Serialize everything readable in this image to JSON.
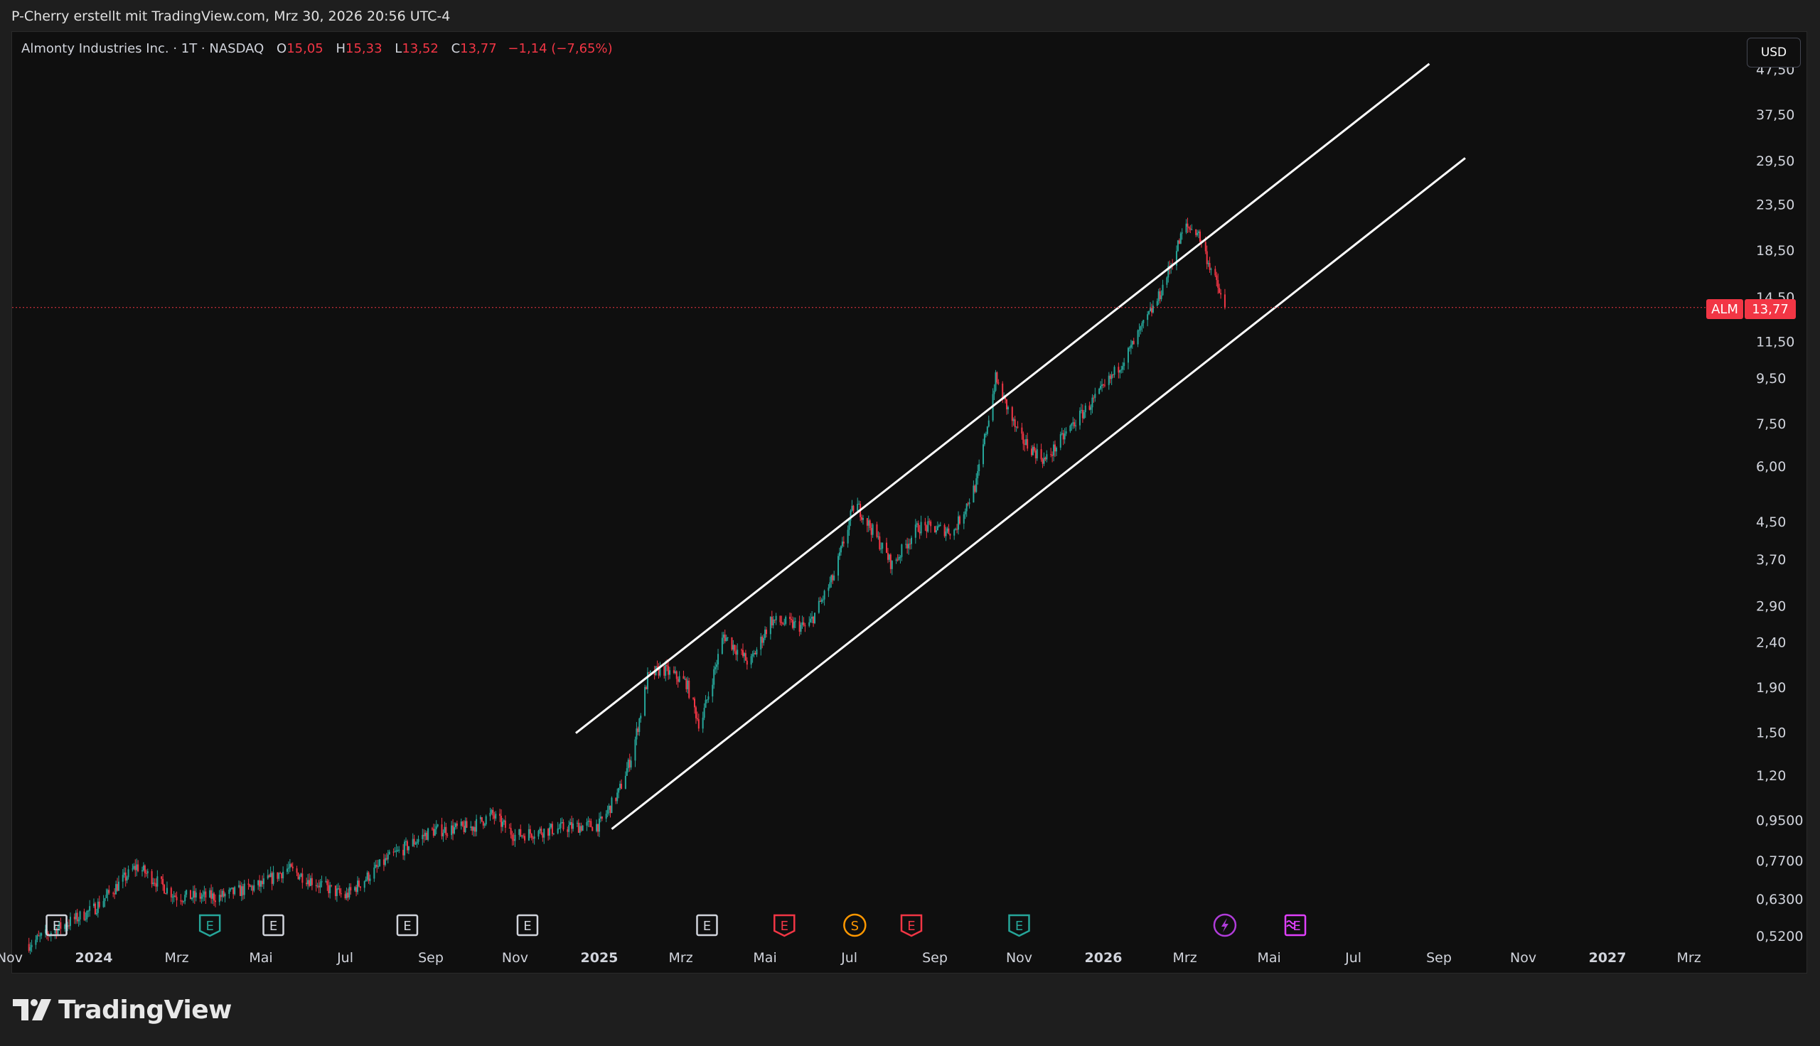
{
  "header": {
    "snapshot_text": "P-Cherry erstellt mit TradingView.com, Mrz 30, 2026 20:56 UTC-4"
  },
  "legend": {
    "symbol_name": "Almonty Industries Inc. · 1T · NASDAQ",
    "open_label": "O",
    "open": "15,05",
    "high_label": "H",
    "high": "15,33",
    "low_label": "L",
    "low": "13,52",
    "close_label": "C",
    "close": "13,77",
    "change": "−1,14 (−7,65%)"
  },
  "toolbar": {
    "currency": "USD"
  },
  "price_label": {
    "symbol": "ALM",
    "value": "13,77"
  },
  "brand": {
    "name": "TradingView"
  },
  "colors": {
    "up": "#26a69a",
    "down": "#f23645",
    "background": "#0f0f0f",
    "frame": "#1e1e1e",
    "channel": "#ffffff",
    "grid_text": "#d1d4dc"
  },
  "chart_data": {
    "type": "candlestick",
    "scale": "log",
    "grid": false,
    "y_ticks": [
      "47,50",
      "37,50",
      "29,50",
      "23,50",
      "18,50",
      "14,50",
      "11,50",
      "9,50",
      "7,50",
      "6,00",
      "4,50",
      "3,70",
      "2,90",
      "2,40",
      "1,90",
      "1,50",
      "1,20",
      "0,9500",
      "0,7700",
      "0,6300",
      "0,5200"
    ],
    "x_ticks": [
      {
        "label": "Nov",
        "date": "2023-11-01"
      },
      {
        "label": "2024",
        "date": "2024-01-01",
        "bold": true
      },
      {
        "label": "Mrz",
        "date": "2024-03-01"
      },
      {
        "label": "Mai",
        "date": "2024-05-01"
      },
      {
        "label": "Jul",
        "date": "2024-07-01"
      },
      {
        "label": "Sep",
        "date": "2024-09-01"
      },
      {
        "label": "Nov",
        "date": "2024-11-01"
      },
      {
        "label": "2025",
        "date": "2025-01-01",
        "bold": true
      },
      {
        "label": "Mrz",
        "date": "2025-03-01"
      },
      {
        "label": "Mai",
        "date": "2025-05-01"
      },
      {
        "label": "Jul",
        "date": "2025-07-01"
      },
      {
        "label": "Sep",
        "date": "2025-09-01"
      },
      {
        "label": "Nov",
        "date": "2025-11-01"
      },
      {
        "label": "2026",
        "date": "2026-01-01",
        "bold": true
      },
      {
        "label": "Mrz",
        "date": "2026-03-01"
      },
      {
        "label": "Mai",
        "date": "2026-05-01"
      },
      {
        "label": "Jul",
        "date": "2026-07-01"
      },
      {
        "label": "Sep",
        "date": "2026-09-01"
      },
      {
        "label": "Nov",
        "date": "2026-11-01"
      },
      {
        "label": "2027",
        "date": "2027-01-01",
        "bold": true
      },
      {
        "label": "Mrz",
        "date": "2027-03-01"
      }
    ],
    "last_close": 13.77,
    "price_path": [
      {
        "date": "2023-11-15",
        "price": 0.5
      },
      {
        "date": "2024-01-01",
        "price": 0.6
      },
      {
        "date": "2024-02-01",
        "price": 0.75
      },
      {
        "date": "2024-03-01",
        "price": 0.64
      },
      {
        "date": "2024-04-01",
        "price": 0.64
      },
      {
        "date": "2024-05-01",
        "price": 0.68
      },
      {
        "date": "2024-05-20",
        "price": 0.74
      },
      {
        "date": "2024-07-01",
        "price": 0.64
      },
      {
        "date": "2024-08-01",
        "price": 0.78
      },
      {
        "date": "2024-09-01",
        "price": 0.9
      },
      {
        "date": "2024-10-01",
        "price": 0.92
      },
      {
        "date": "2024-10-15",
        "price": 0.98
      },
      {
        "date": "2024-11-01",
        "price": 0.88
      },
      {
        "date": "2024-11-20",
        "price": 0.9
      },
      {
        "date": "2024-12-10",
        "price": 0.92
      },
      {
        "date": "2025-01-01",
        "price": 0.93
      },
      {
        "date": "2025-01-15",
        "price": 1.1
      },
      {
        "date": "2025-01-25",
        "price": 1.35
      },
      {
        "date": "2025-02-05",
        "price": 2.0
      },
      {
        "date": "2025-02-15",
        "price": 2.1
      },
      {
        "date": "2025-03-05",
        "price": 1.95
      },
      {
        "date": "2025-03-15",
        "price": 1.55
      },
      {
        "date": "2025-04-01",
        "price": 2.5
      },
      {
        "date": "2025-04-20",
        "price": 2.15
      },
      {
        "date": "2025-05-05",
        "price": 2.7
      },
      {
        "date": "2025-06-01",
        "price": 2.6
      },
      {
        "date": "2025-06-20",
        "price": 3.4
      },
      {
        "date": "2025-07-05",
        "price": 5.0
      },
      {
        "date": "2025-07-20",
        "price": 4.2
      },
      {
        "date": "2025-08-01",
        "price": 3.6
      },
      {
        "date": "2025-08-20",
        "price": 4.4
      },
      {
        "date": "2025-09-15",
        "price": 4.3
      },
      {
        "date": "2025-10-01",
        "price": 5.5
      },
      {
        "date": "2025-10-15",
        "price": 9.5
      },
      {
        "date": "2025-11-01",
        "price": 7.0
      },
      {
        "date": "2025-11-20",
        "price": 6.2
      },
      {
        "date": "2025-12-10",
        "price": 7.5
      },
      {
        "date": "2026-01-01",
        "price": 9.0
      },
      {
        "date": "2026-01-20",
        "price": 11.0
      },
      {
        "date": "2026-02-10",
        "price": 14.5
      },
      {
        "date": "2026-03-01",
        "price": 21.0
      },
      {
        "date": "2026-03-10",
        "price": 20.5
      },
      {
        "date": "2026-03-30",
        "price": 13.77
      }
    ],
    "trendlines": [
      {
        "name": "upper-channel",
        "from": {
          "date": "2024-12-15",
          "price": 1.5
        },
        "to": {
          "date": "2026-08-25",
          "price": 49.0
        }
      },
      {
        "name": "lower-channel",
        "from": {
          "date": "2025-01-10",
          "price": 0.91
        },
        "to": {
          "date": "2026-09-20",
          "price": 30.0
        }
      }
    ],
    "events": [
      {
        "date": "2023-12-05",
        "kind": "E",
        "color": "#d1d4dc",
        "style": "square"
      },
      {
        "date": "2024-03-25",
        "kind": "E",
        "color": "#26a69a",
        "style": "shield"
      },
      {
        "date": "2024-05-10",
        "kind": "E",
        "color": "#d1d4dc",
        "style": "square"
      },
      {
        "date": "2024-08-15",
        "kind": "E",
        "color": "#d1d4dc",
        "style": "square"
      },
      {
        "date": "2024-11-10",
        "kind": "E",
        "color": "#d1d4dc",
        "style": "square"
      },
      {
        "date": "2025-03-20",
        "kind": "E",
        "color": "#d1d4dc",
        "style": "square"
      },
      {
        "date": "2025-05-15",
        "kind": "E",
        "color": "#f23645",
        "style": "shield"
      },
      {
        "date": "2025-07-05",
        "kind": "S",
        "color": "#ff9800",
        "style": "circle"
      },
      {
        "date": "2025-08-15",
        "kind": "E",
        "color": "#f23645",
        "style": "shield"
      },
      {
        "date": "2025-11-01",
        "kind": "E",
        "color": "#26a69a",
        "style": "shield"
      },
      {
        "date": "2026-03-30",
        "kind": "bolt",
        "color": "#b03cd9",
        "style": "circle"
      },
      {
        "date": "2026-05-20",
        "kind": "E",
        "color": "#e040fb",
        "style": "square-wave"
      }
    ]
  }
}
